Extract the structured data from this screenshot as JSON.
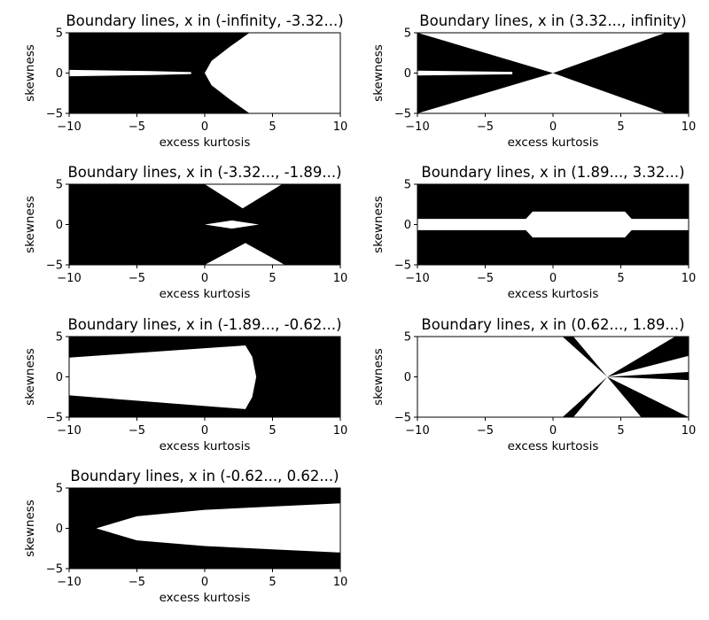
{
  "chart_data": [
    {
      "type": "area",
      "title": "Boundary lines, x in (-infinity, -3.32...)",
      "xlabel": "excess kurtosis",
      "ylabel": "skewness",
      "xlim": [
        -10,
        10
      ],
      "ylim": [
        -5,
        5
      ],
      "xticks": [
        "−10",
        "−5",
        "0",
        "5",
        "10"
      ],
      "yticks": [
        "−5",
        "0",
        "5"
      ],
      "fill_color": "#000000",
      "white_regions": [
        [
          [
            -10,
            0.4
          ],
          [
            -4,
            0.25
          ],
          [
            -1,
            0.12
          ],
          [
            -1,
            -0.12
          ],
          [
            -4,
            -0.25
          ],
          [
            -10,
            -0.4
          ]
        ],
        [
          [
            0,
            0
          ],
          [
            0.5,
            1.5
          ],
          [
            1.8,
            3.2
          ],
          [
            3.3,
            5
          ],
          [
            10,
            5
          ],
          [
            10,
            -5
          ],
          [
            3.3,
            -5
          ],
          [
            1.8,
            -3.2
          ],
          [
            0.5,
            -1.5
          ]
        ]
      ]
    },
    {
      "type": "area",
      "title": "Boundary lines, x in (3.32..., infinity)",
      "xlabel": "excess kurtosis",
      "ylabel": "skewness",
      "xlim": [
        -10,
        10
      ],
      "ylim": [
        -5,
        5
      ],
      "xticks": [
        "−10",
        "−5",
        "0",
        "5",
        "10"
      ],
      "yticks": [
        "−5",
        "0",
        "5"
      ],
      "fill_color": "#000000",
      "black_regions": [
        [
          [
            -10,
            5
          ],
          [
            -10,
            -5
          ],
          [
            0,
            0
          ]
        ],
        [
          [
            0,
            0
          ],
          [
            8.3,
            -5
          ],
          [
            10,
            -5
          ],
          [
            10,
            5
          ],
          [
            8.3,
            5
          ]
        ]
      ],
      "white_regions": [
        [
          [
            -10,
            0.3
          ],
          [
            -3,
            0.15
          ],
          [
            -3,
            -0.15
          ],
          [
            -10,
            -0.3
          ]
        ]
      ]
    },
    {
      "type": "area",
      "title": "Boundary lines, x in (-3.32..., -1.89...)",
      "xlabel": "excess kurtosis",
      "ylabel": "skewness",
      "xlim": [
        -10,
        10
      ],
      "ylim": [
        -5,
        5
      ],
      "xticks": [
        "−10",
        "−5",
        "0",
        "5",
        "10"
      ],
      "yticks": [
        "−5",
        "0",
        "5"
      ],
      "fill_color": "#000000",
      "white_regions": [
        [
          [
            0,
            5
          ],
          [
            2.8,
            2
          ],
          [
            5.7,
            5
          ]
        ],
        [
          [
            0,
            -5
          ],
          [
            3,
            -2.3
          ],
          [
            5.9,
            -5
          ]
        ],
        [
          [
            0,
            0
          ],
          [
            2,
            0.5
          ],
          [
            4,
            0
          ],
          [
            2,
            -0.5
          ]
        ]
      ]
    },
    {
      "type": "area",
      "title": "Boundary lines, x in (1.89..., 3.32...)",
      "xlabel": "excess kurtosis",
      "ylabel": "skewness",
      "xlim": [
        -10,
        10
      ],
      "ylim": [
        -5,
        5
      ],
      "xticks": [
        "−10",
        "−5",
        "0",
        "5",
        "10"
      ],
      "yticks": [
        "−5",
        "0",
        "5"
      ],
      "fill_color": "#000000",
      "white_regions": [
        [
          [
            -10,
            0.7
          ],
          [
            -2,
            0.7
          ],
          [
            -1.5,
            1.6
          ],
          [
            5.3,
            1.6
          ],
          [
            5.8,
            0.7
          ],
          [
            10,
            0.7
          ],
          [
            10,
            -0.7
          ],
          [
            5.8,
            -0.7
          ],
          [
            5.3,
            -1.6
          ],
          [
            -1.5,
            -1.6
          ],
          [
            -2,
            -0.7
          ],
          [
            -10,
            -0.7
          ]
        ]
      ]
    },
    {
      "type": "area",
      "title": "Boundary lines, x in (-1.89..., -0.62...)",
      "xlabel": "excess kurtosis",
      "ylabel": "skewness",
      "xlim": [
        -10,
        10
      ],
      "ylim": [
        -5,
        5
      ],
      "xticks": [
        "−10",
        "−5",
        "0",
        "5",
        "10"
      ],
      "yticks": [
        "−5",
        "0",
        "5"
      ],
      "fill_color": "#000000",
      "white_regions": [
        [
          [
            -10,
            2.4
          ],
          [
            3.0,
            3.9
          ],
          [
            3.5,
            2.5
          ],
          [
            3.8,
            0
          ],
          [
            3.5,
            -2.5
          ],
          [
            3.0,
            -4.0
          ],
          [
            -10,
            -2.3
          ]
        ]
      ]
    },
    {
      "type": "area",
      "title": "Boundary lines, x in (0.62..., 1.89...)",
      "xlabel": "excess kurtosis",
      "ylabel": "skewness",
      "xlim": [
        -10,
        10
      ],
      "ylim": [
        -5,
        5
      ],
      "xticks": [
        "−10",
        "−5",
        "0",
        "5",
        "10"
      ],
      "yticks": [
        "−5",
        "0",
        "5"
      ],
      "fill_color": "#000000",
      "black_regions": [
        [
          [
            4,
            0
          ],
          [
            0.7,
            5
          ],
          [
            1.5,
            5
          ]
        ],
        [
          [
            4,
            0
          ],
          [
            0.7,
            -5
          ],
          [
            1.5,
            -5
          ]
        ],
        [
          [
            4,
            0
          ],
          [
            10,
            2.6
          ],
          [
            10,
            5
          ],
          [
            9.0,
            5
          ]
        ],
        [
          [
            4,
            0
          ],
          [
            10,
            -5
          ],
          [
            6.5,
            -5
          ]
        ],
        [
          [
            4,
            0
          ],
          [
            10,
            0.6
          ],
          [
            10,
            -0.4
          ]
        ]
      ]
    },
    {
      "type": "area",
      "title": "Boundary lines, x in (-0.62..., 0.62...)",
      "xlabel": "excess kurtosis",
      "ylabel": "skewness",
      "xlim": [
        -10,
        10
      ],
      "ylim": [
        -5,
        5
      ],
      "xticks": [
        "−10",
        "−5",
        "0",
        "5",
        "10"
      ],
      "yticks": [
        "−5",
        "0",
        "5"
      ],
      "fill_color": "#000000",
      "white_regions": [
        [
          [
            -8.0,
            0
          ],
          [
            -5,
            1.5
          ],
          [
            0,
            2.3
          ],
          [
            5,
            2.7
          ],
          [
            10,
            3.1
          ],
          [
            10,
            -3.0
          ],
          [
            5,
            -2.6
          ],
          [
            0,
            -2.2
          ],
          [
            -5,
            -1.5
          ]
        ]
      ]
    }
  ]
}
